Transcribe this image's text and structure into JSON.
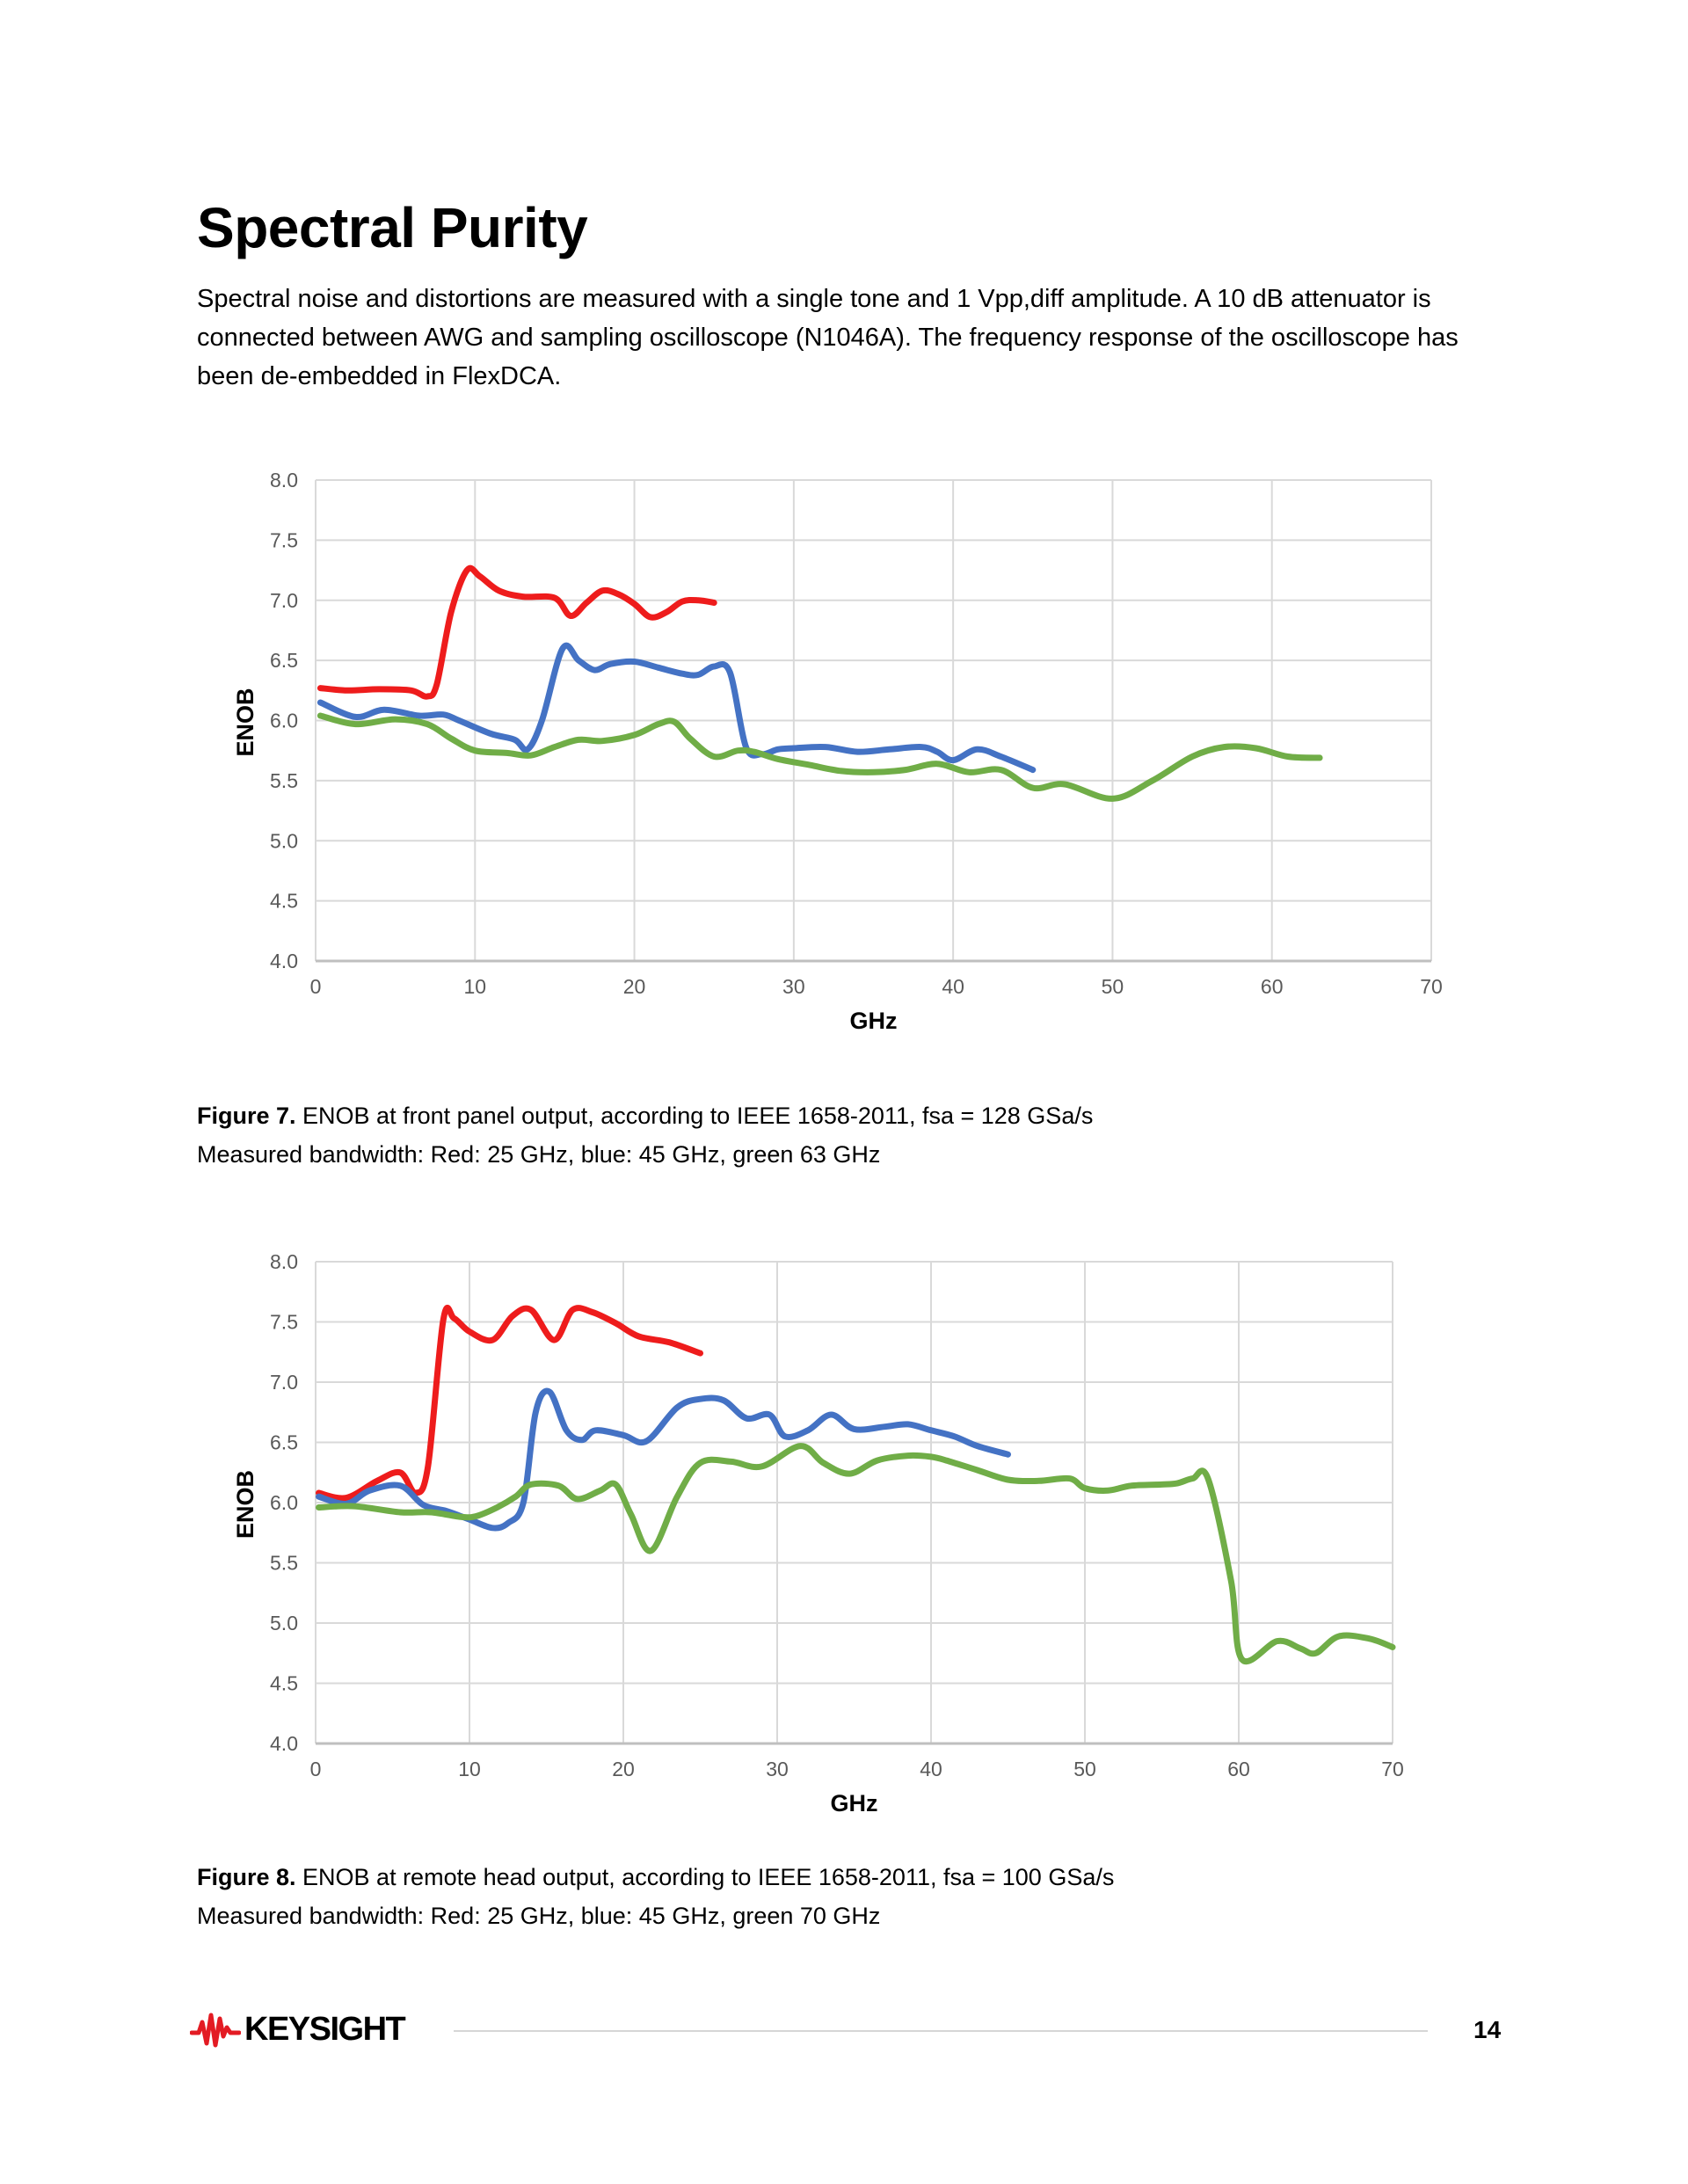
{
  "page": {
    "title": "Spectral Purity",
    "paragraph": "Spectral noise and distortions are measured with a single tone and 1 Vpp,diff amplitude. A 10 dB attenuator is connected between AWG and sampling oscilloscope (N1046A). The frequency response of the oscilloscope has been de-embedded in FlexDCA.",
    "footer": {
      "brand": "KEYSIGHT",
      "page_number": "14"
    }
  },
  "captions": [
    {
      "label": "Figure 7.",
      "text": " ENOB at front panel output, according to IEEE 1658-2011, fsa = 128 GSa/s",
      "line2": "Measured bandwidth: Red: 25 GHz, blue: 45 GHz, green 63 GHz"
    },
    {
      "label": "Figure 8.",
      "text": " ENOB at remote head output, according to IEEE 1658-2011, fsa = 100 GSa/s",
      "line2": "Measured bandwidth: Red: 25 GHz, blue: 45 GHz, green 70 GHz"
    }
  ],
  "chart_data": [
    {
      "type": "line",
      "title": "",
      "xlabel": "GHz",
      "ylabel": "ENOB",
      "xlim": [
        0,
        70
      ],
      "ylim": [
        4.0,
        8.0
      ],
      "xticks": [
        "0",
        "10",
        "20",
        "30",
        "40",
        "50",
        "60",
        "70"
      ],
      "yticks": [
        "4.0",
        "4.5",
        "5.0",
        "5.5",
        "6.0",
        "6.5",
        "7.0",
        "7.5",
        "8.0"
      ],
      "grid": true,
      "legend": "none",
      "series": [
        {
          "name": "Red (25 GHz)",
          "color": "#ee1c1c",
          "x": [
            0.3,
            2,
            4,
            6,
            7,
            7.6,
            8.5,
            9.5,
            10.3,
            11.5,
            13,
            15,
            16,
            17,
            18,
            19,
            20,
            21,
            22,
            23,
            24,
            25
          ],
          "y": [
            6.27,
            6.25,
            6.26,
            6.25,
            6.2,
            6.3,
            6.9,
            7.25,
            7.2,
            7.08,
            7.03,
            7.02,
            6.87,
            6.98,
            7.08,
            7.05,
            6.97,
            6.86,
            6.9,
            6.99,
            7.0,
            6.98
          ]
        },
        {
          "name": "Blue (45 GHz)",
          "color": "#4472c4",
          "x": [
            0.3,
            2.5,
            4.3,
            6.5,
            8,
            9,
            11,
            12.5,
            13.3,
            14.2,
            15.5,
            16.5,
            17.5,
            18.5,
            20,
            21.5,
            23,
            24,
            25,
            26,
            27,
            28,
            29,
            30,
            32,
            34,
            36,
            38,
            39,
            40,
            41.5,
            43,
            45
          ],
          "y": [
            6.15,
            6.03,
            6.09,
            6.04,
            6.05,
            6.0,
            5.89,
            5.84,
            5.76,
            6.0,
            6.6,
            6.5,
            6.42,
            6.47,
            6.49,
            6.44,
            6.39,
            6.38,
            6.45,
            6.4,
            5.78,
            5.72,
            5.76,
            5.77,
            5.78,
            5.74,
            5.76,
            5.78,
            5.74,
            5.67,
            5.76,
            5.7,
            5.59
          ]
        },
        {
          "name": "Green (63 GHz)",
          "color": "#70ad47",
          "x": [
            0.3,
            2.5,
            5,
            7,
            8.5,
            10,
            12,
            13.5,
            15,
            16.5,
            18,
            20,
            21.5,
            22.5,
            23.5,
            25,
            26.5,
            27.5,
            29,
            31,
            33,
            35,
            37,
            39,
            41,
            43,
            45,
            47,
            50,
            52.5,
            55,
            57,
            59,
            61,
            63
          ],
          "y": [
            6.04,
            5.97,
            6.01,
            5.97,
            5.85,
            5.75,
            5.73,
            5.71,
            5.78,
            5.84,
            5.83,
            5.88,
            5.97,
            5.99,
            5.85,
            5.7,
            5.75,
            5.74,
            5.68,
            5.63,
            5.58,
            5.57,
            5.59,
            5.64,
            5.57,
            5.59,
            5.44,
            5.47,
            5.35,
            5.5,
            5.7,
            5.78,
            5.77,
            5.7,
            5.69
          ]
        }
      ]
    },
    {
      "type": "line",
      "title": "",
      "xlabel": "GHz",
      "ylabel": "ENOB",
      "xlim": [
        0,
        70
      ],
      "ylim": [
        4.0,
        8.0
      ],
      "xticks": [
        "0",
        "10",
        "20",
        "30",
        "40",
        "50",
        "60",
        "70"
      ],
      "yticks": [
        "4.0",
        "4.5",
        "5.0",
        "5.5",
        "6.0",
        "6.5",
        "7.0",
        "7.5",
        "8.0"
      ],
      "grid": true,
      "legend": "none",
      "series": [
        {
          "name": "Red (25 GHz)",
          "color": "#ee1c1c",
          "x": [
            0.2,
            2,
            4,
            5.5,
            6.5,
            7.3,
            8.3,
            9,
            10,
            11.5,
            12.8,
            14,
            15.5,
            16.7,
            18,
            19.5,
            21,
            23,
            25
          ],
          "y": [
            6.08,
            6.04,
            6.18,
            6.25,
            6.08,
            6.3,
            7.52,
            7.53,
            7.42,
            7.35,
            7.55,
            7.6,
            7.35,
            7.6,
            7.58,
            7.49,
            7.38,
            7.33,
            7.24
          ]
        },
        {
          "name": "Blue (45 GHz)",
          "color": "#4472c4",
          "x": [
            0.2,
            2,
            3.5,
            5.5,
            7,
            8.5,
            10,
            11.5,
            12.5,
            13.5,
            14.3,
            15.2,
            16.3,
            17.3,
            18.2,
            20,
            21.5,
            23.5,
            25,
            26.5,
            28,
            29.5,
            30.5,
            32,
            33.5,
            35,
            37,
            38.5,
            40,
            41.5,
            43,
            45
          ],
          "y": [
            6.05,
            5.99,
            6.1,
            6.14,
            5.98,
            5.93,
            5.86,
            5.79,
            5.83,
            6.0,
            6.75,
            6.92,
            6.6,
            6.52,
            6.6,
            6.56,
            6.51,
            6.79,
            6.86,
            6.85,
            6.7,
            6.73,
            6.55,
            6.6,
            6.73,
            6.61,
            6.63,
            6.65,
            6.6,
            6.55,
            6.47,
            6.4
          ]
        },
        {
          "name": "Green (70 GHz)",
          "color": "#70ad47",
          "x": [
            0.2,
            2.5,
            5.5,
            7.5,
            9.5,
            10.5,
            11.8,
            13,
            14,
            15.8,
            17,
            18.5,
            19.5,
            20.5,
            21.8,
            23.5,
            25,
            27,
            29,
            31.5,
            33,
            34.7,
            36.5,
            38.5,
            40,
            41,
            43,
            45,
            47,
            49,
            50,
            51.5,
            53,
            55,
            56,
            57,
            58,
            59.5,
            60.2,
            62.5,
            64,
            65,
            66.5,
            68.5,
            70
          ],
          "y": [
            5.96,
            5.97,
            5.92,
            5.92,
            5.88,
            5.89,
            5.96,
            6.05,
            6.15,
            6.14,
            6.03,
            6.1,
            6.15,
            5.9,
            5.6,
            6.05,
            6.33,
            6.34,
            6.3,
            6.47,
            6.33,
            6.24,
            6.35,
            6.39,
            6.38,
            6.35,
            6.27,
            6.19,
            6.18,
            6.2,
            6.12,
            6.1,
            6.14,
            6.15,
            6.16,
            6.2,
            6.2,
            5.35,
            4.7,
            4.85,
            4.79,
            4.75,
            4.89,
            4.87,
            4.8
          ]
        }
      ]
    }
  ]
}
